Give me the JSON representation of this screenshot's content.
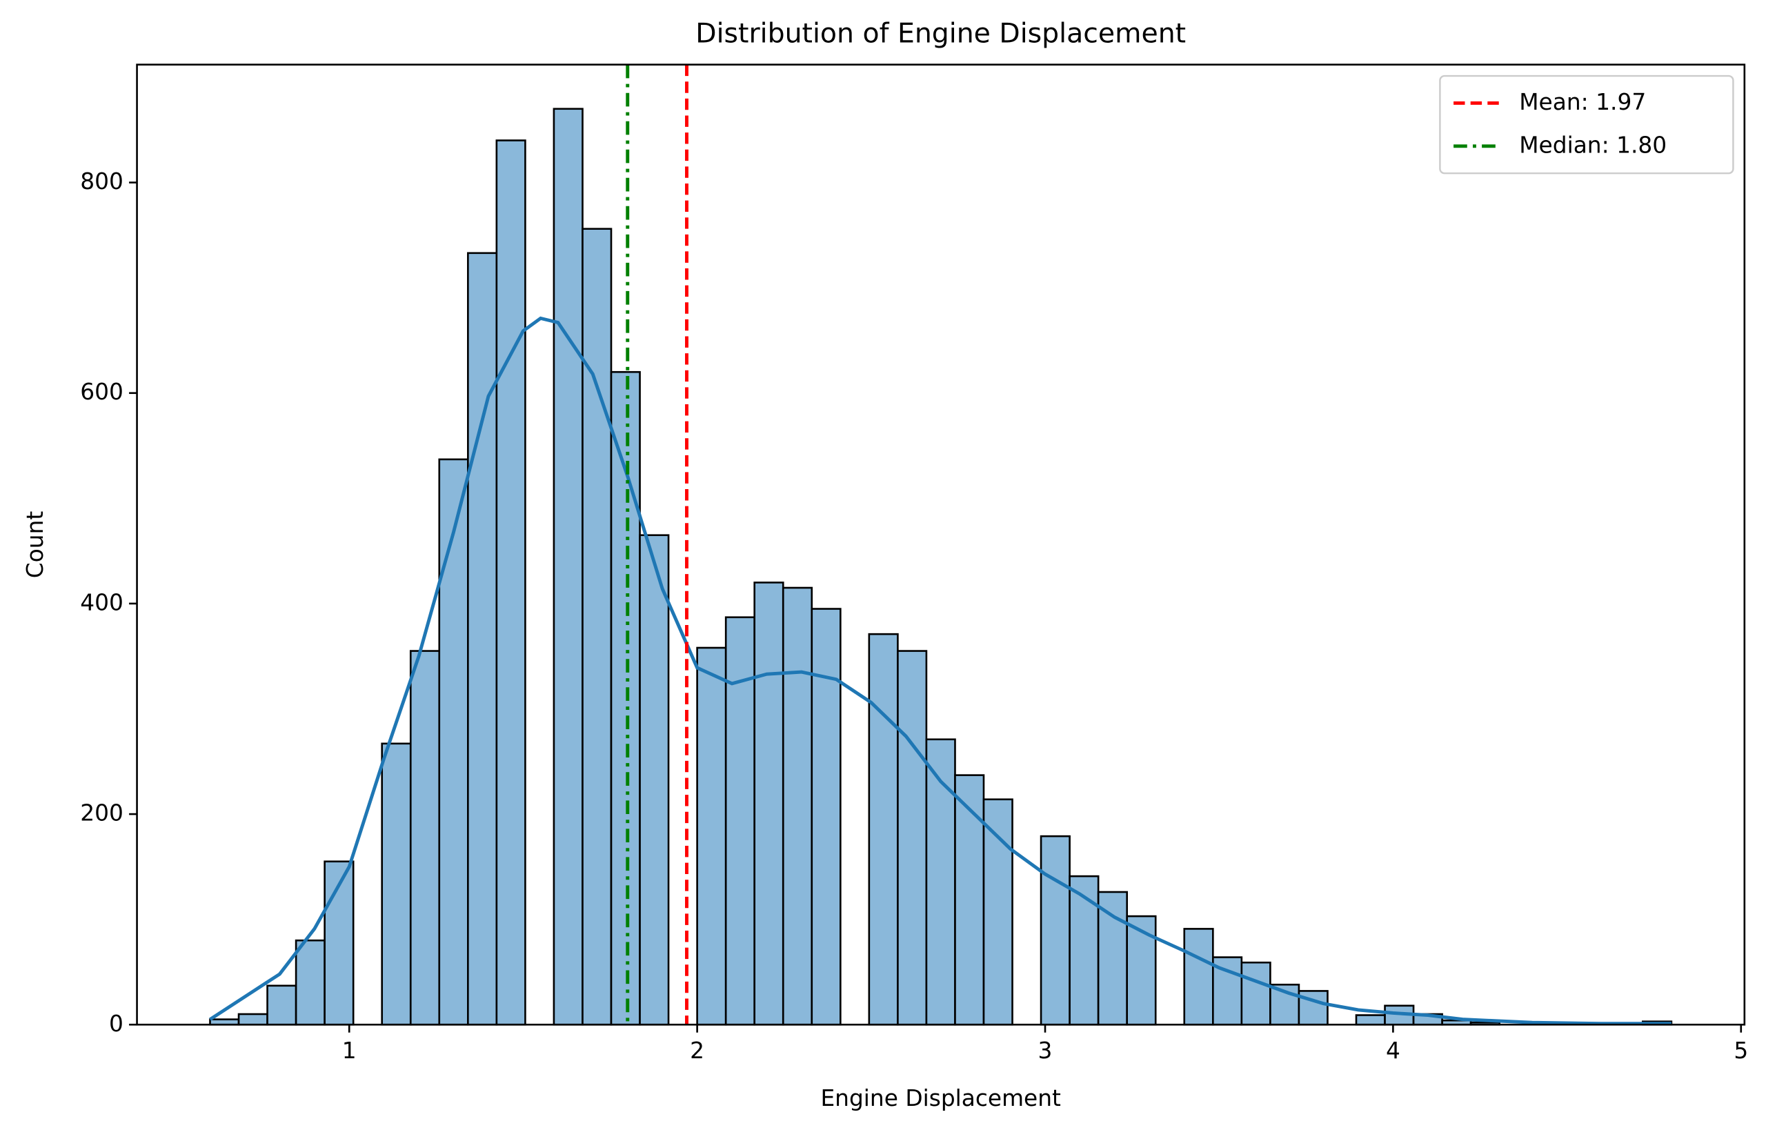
{
  "chart_data": {
    "type": "histogram",
    "title": "Distribution of Engine Displacement",
    "x_label": "Engine Displacement",
    "y_label": "Count",
    "bins": [
      0.6,
      0.6824,
      0.7647,
      0.8471,
      0.9294,
      1.0118,
      1.0941,
      1.1765,
      1.2588,
      1.3412,
      1.4235,
      1.5059,
      1.5882,
      1.6706,
      1.7529,
      1.8353,
      1.9176,
      2.0,
      2.0824,
      2.1647,
      2.2471,
      2.3294,
      2.4118,
      2.4941,
      2.5765,
      2.6588,
      2.7412,
      2.8235,
      2.9059,
      2.9882,
      3.0706,
      3.1529,
      3.2353,
      3.3176,
      3.4,
      3.4824,
      3.5647,
      3.6471,
      3.7294,
      3.8118,
      3.8941,
      3.9765,
      4.0588,
      4.1412,
      4.2235,
      4.3059,
      4.3882,
      4.4706,
      4.5529,
      4.6353,
      4.7176,
      4.8
    ],
    "values": [
      5,
      10,
      37,
      80,
      155,
      0,
      267,
      355,
      537,
      733,
      840,
      0,
      870,
      756,
      620,
      465,
      0,
      358,
      387,
      420,
      415,
      395,
      0,
      371,
      355,
      271,
      237,
      214,
      0,
      179,
      141,
      126,
      103,
      0,
      91,
      64,
      59,
      38,
      32,
      0,
      9,
      18,
      10,
      4,
      2,
      0,
      0,
      0,
      0,
      0,
      3
    ],
    "color": "#8ab8da",
    "edge_color": "#000000",
    "kde": {
      "color": "#1f77b4",
      "x": [
        0.6,
        0.8,
        0.9,
        1.0,
        1.1,
        1.2,
        1.3,
        1.4,
        1.5,
        1.55,
        1.6,
        1.7,
        1.8,
        1.9,
        2.0,
        2.1,
        2.2,
        2.3,
        2.4,
        2.5,
        2.6,
        2.7,
        2.8,
        2.9,
        3.0,
        3.1,
        3.2,
        3.3,
        3.4,
        3.5,
        3.6,
        3.7,
        3.8,
        3.9,
        4.0,
        4.1,
        4.2,
        4.4,
        4.6,
        4.8
      ],
      "y": [
        5,
        48,
        91,
        150,
        253,
        350,
        468,
        597,
        659,
        671,
        667,
        618,
        521,
        414,
        339,
        324,
        333,
        335,
        328,
        306,
        274,
        231,
        199,
        167,
        143,
        124,
        102,
        85,
        70,
        54,
        42,
        30,
        20,
        14,
        11,
        9,
        5,
        2,
        1,
        1
      ]
    },
    "vlines": [
      {
        "name": "Mean: 1.97",
        "value": 1.97,
        "color": "#ff0000",
        "dash": "dashed"
      },
      {
        "name": "Median: 1.80",
        "value": 1.8,
        "color": "#008000",
        "dash": "dashdot"
      }
    ],
    "legend": "upper right",
    "xlim": [
      0.39,
      5.01
    ],
    "ylim": [
      0,
      912
    ],
    "xticks": [
      1,
      2,
      3,
      4,
      5
    ],
    "yticks": [
      0,
      200,
      400,
      600,
      800
    ]
  }
}
